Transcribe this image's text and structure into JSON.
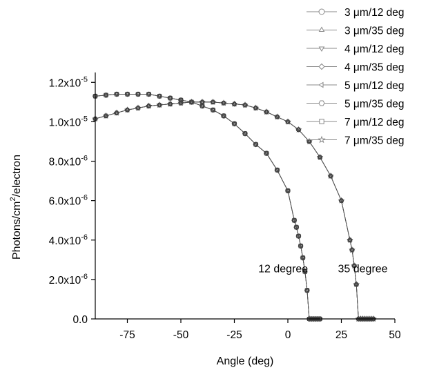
{
  "chart_data": {
    "type": "line",
    "xlabel": "Angle (deg)",
    "ylabel": "Photons/cm²/electron",
    "xlim": [
      -90,
      50
    ],
    "ylim": [
      0,
      1.25e-05
    ],
    "xticks": [
      -75,
      -50,
      -25,
      0,
      25,
      50
    ],
    "xtick_labels": [
      "-75",
      "-50",
      "-25",
      "0",
      "25",
      "50"
    ],
    "yticks": [
      0,
      2e-06,
      4e-06,
      6e-06,
      8e-06,
      1e-05,
      1.2e-05
    ],
    "ytick_labels": [
      {
        "mantissa": "0.0",
        "exp": ""
      },
      {
        "mantissa": "2.0x10",
        "exp": "-6"
      },
      {
        "mantissa": "4.0x10",
        "exp": "-6"
      },
      {
        "mantissa": "6.0x10",
        "exp": "-6"
      },
      {
        "mantissa": "8.0x10",
        "exp": "-6"
      },
      {
        "mantissa": "1.0x10",
        "exp": "-5"
      },
      {
        "mantissa": "1.2x10",
        "exp": "-5"
      }
    ],
    "grid": false,
    "legend_position": "top-right",
    "annotations": [
      {
        "text": "12 degree",
        "x": 12,
        "y": 2.3e-06
      },
      {
        "text": "35 degree",
        "x": 35,
        "y": 2.3e-06
      }
    ],
    "curve_12": {
      "x": [
        -90,
        -85,
        -80,
        -75,
        -70,
        -65,
        -60,
        -55,
        -50,
        -45,
        -40,
        -35,
        -30,
        -25,
        -20,
        -15,
        -10,
        -5,
        0,
        3,
        4,
        5,
        6,
        7,
        8,
        9,
        10,
        11,
        12,
        13,
        14,
        15
      ],
      "y": [
        1.13e-05,
        1.135e-05,
        1.14e-05,
        1.14e-05,
        1.14e-05,
        1.14e-05,
        1.13e-05,
        1.12e-05,
        1.11e-05,
        1.1e-05,
        1.08e-05,
        1.06e-05,
        1.03e-05,
        9.9e-06,
        9.4e-06,
        8.85e-06,
        8.4e-06,
        7.55e-06,
        6.5e-06,
        5e-06,
        4.65e-06,
        4.2e-06,
        3.7e-06,
        3.1e-06,
        2.4e-06,
        1.45e-06,
        0,
        0,
        0,
        0,
        0,
        0
      ]
    },
    "curve_35": {
      "x": [
        -90,
        -85,
        -80,
        -75,
        -70,
        -65,
        -60,
        -55,
        -50,
        -45,
        -40,
        -35,
        -30,
        -25,
        -20,
        -15,
        -10,
        -5,
        0,
        5,
        10,
        15,
        20,
        25,
        29,
        30,
        31,
        32,
        33,
        34,
        35,
        36,
        37,
        38,
        39,
        40
      ],
      "y": [
        1.015e-05,
        1.03e-05,
        1.045e-05,
        1.06e-05,
        1.07e-05,
        1.08e-05,
        1.085e-05,
        1.09e-05,
        1.095e-05,
        1.1e-05,
        1.1e-05,
        1.1e-05,
        1.095e-05,
        1.09e-05,
        1.085e-05,
        1.07e-05,
        1.05e-05,
        1.025e-05,
        1e-05,
        9.6e-06,
        9e-06,
        8.2e-06,
        7.25e-06,
        6e-06,
        4e-06,
        3.5e-06,
        2.7e-06,
        1.75e-06,
        0,
        0,
        0,
        0,
        0,
        0,
        0,
        0
      ]
    },
    "series": [
      {
        "name": "3 μm/12 deg",
        "marker": "circle",
        "curve": "curve_12"
      },
      {
        "name": "3 μm/35 deg",
        "marker": "triangle-up",
        "curve": "curve_35"
      },
      {
        "name": "4 μm/12 deg",
        "marker": "triangle-down",
        "curve": "curve_12"
      },
      {
        "name": "4 μm/35 deg",
        "marker": "diamond",
        "curve": "curve_35"
      },
      {
        "name": "5 μm/12 deg",
        "marker": "triangle-left",
        "curve": "curve_12"
      },
      {
        "name": "5 μm/35 deg",
        "marker": "hexagon",
        "curve": "curve_35"
      },
      {
        "name": "7 μm/12 deg",
        "marker": "square",
        "curve": "curve_12"
      },
      {
        "name": "7 μm/35 deg",
        "marker": "star",
        "curve": "curve_35"
      }
    ],
    "colors": {
      "axis": "#000000",
      "line": "#555555",
      "marker": "#444444",
      "legend_line": "#888888"
    }
  }
}
